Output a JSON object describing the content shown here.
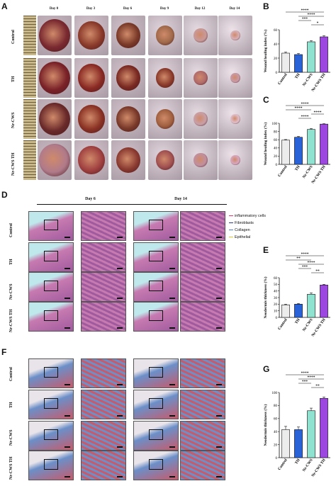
{
  "panels": {
    "a": "A",
    "b": "B",
    "c": "C",
    "d": "D",
    "e": "E",
    "f": "F",
    "g": "G"
  },
  "panelA": {
    "days": [
      "Day 0",
      "Day 3",
      "Day 6",
      "Day 9",
      "Day 12",
      "Day 14"
    ],
    "groups": [
      "Control",
      "TH",
      "Nr-CWS",
      "Nr-CWS TH"
    ],
    "ruler_marks": [
      "1.0",
      "2.0"
    ]
  },
  "panelD": {
    "days": [
      "Day 6",
      "Day 14"
    ],
    "groups": [
      "Control",
      "TH",
      "Nr-CWS",
      "Nr-CWS TH"
    ],
    "legend": [
      {
        "label": "inflammatory cells",
        "color": "#e8356b"
      },
      {
        "label": "Fibroblasts",
        "color": "#2b3a8f"
      },
      {
        "label": "Collagen",
        "color": "#4a7fd4"
      },
      {
        "label": "Epithelial",
        "color": "#e5c42a"
      }
    ]
  },
  "panelF": {
    "groups": [
      "Control",
      "TH",
      "Nr-CWS",
      "Nr-CWS TH"
    ]
  },
  "chart_data": [
    {
      "panel": "B",
      "type": "bar",
      "categories": [
        "Control",
        "TH",
        "Nr-CWS",
        "Nr-CWS TH"
      ],
      "values": [
        27,
        25,
        43,
        50
      ],
      "errors": [
        1.5,
        1.5,
        1.5,
        1.5
      ],
      "colors": [
        "#ececec",
        "#2a63d8",
        "#8fe2cf",
        "#9b47e0"
      ],
      "ylabel": "Wound healing index (%)",
      "ylim": [
        0,
        60
      ],
      "yticks": [
        0,
        20,
        40,
        60
      ],
      "sig": [
        {
          "from": 0,
          "to": 3,
          "label": "****"
        },
        {
          "from": 1,
          "to": 3,
          "label": "****"
        },
        {
          "from": 1,
          "to": 2,
          "label": "***"
        },
        {
          "from": 2,
          "to": 3,
          "label": "*"
        }
      ]
    },
    {
      "panel": "C",
      "type": "bar",
      "categories": [
        "Control",
        "TH",
        "Nr-CWS",
        "Nr-CWS TH"
      ],
      "values": [
        59,
        66,
        85,
        98
      ],
      "errors": [
        1.5,
        2,
        2,
        1
      ],
      "colors": [
        "#ececec",
        "#2a63d8",
        "#8fe2cf",
        "#9b47e0"
      ],
      "ylabel": "Wound healing index (%)",
      "ylim": [
        0,
        100
      ],
      "yticks": [
        0,
        20,
        40,
        60,
        80,
        100
      ],
      "sig": [
        {
          "from": 0,
          "to": 3,
          "label": "****"
        },
        {
          "from": 0,
          "to": 2,
          "label": "****"
        },
        {
          "from": 2,
          "to": 3,
          "label": "****"
        },
        {
          "from": 1,
          "to": 2,
          "label": "****"
        }
      ]
    },
    {
      "panel": "E",
      "type": "bar",
      "categories": [
        "Control",
        "TH",
        "Nr-CWS",
        "Nr-CWS TH"
      ],
      "values": [
        19,
        20,
        35,
        49
      ],
      "errors": [
        1,
        1,
        2,
        1
      ],
      "colors": [
        "#ececec",
        "#2a63d8",
        "#8fe2cf",
        "#9b47e0"
      ],
      "ylabel": "Neodermis thickness (%)",
      "ylim": [
        0,
        60
      ],
      "yticks": [
        0,
        10,
        20,
        30,
        40,
        50,
        60
      ],
      "sig": [
        {
          "from": 0,
          "to": 3,
          "label": "****"
        },
        {
          "from": 0,
          "to": 2,
          "label": "**"
        },
        {
          "from": 1,
          "to": 3,
          "label": "****"
        },
        {
          "from": 1,
          "to": 2,
          "label": "***"
        },
        {
          "from": 2,
          "to": 3,
          "label": "**"
        }
      ]
    },
    {
      "panel": "G",
      "type": "bar",
      "categories": [
        "Control",
        "TH",
        "Nr-CWS",
        "Nr-CWS TH"
      ],
      "values": [
        43,
        43,
        72,
        91
      ],
      "errors": [
        5,
        4,
        4,
        2
      ],
      "colors": [
        "#ececec",
        "#2a63d8",
        "#8fe2cf",
        "#9b47e0"
      ],
      "ylabel": "Neodermis thickness (%)",
      "ylim": [
        0,
        100
      ],
      "yticks": [
        0,
        20,
        40,
        60,
        80,
        100
      ],
      "sig": [
        {
          "from": 0,
          "to": 3,
          "label": "****"
        },
        {
          "from": 1,
          "to": 3,
          "label": "****"
        },
        {
          "from": 1,
          "to": 2,
          "label": "***"
        },
        {
          "from": 2,
          "to": 3,
          "label": "**"
        }
      ]
    }
  ]
}
